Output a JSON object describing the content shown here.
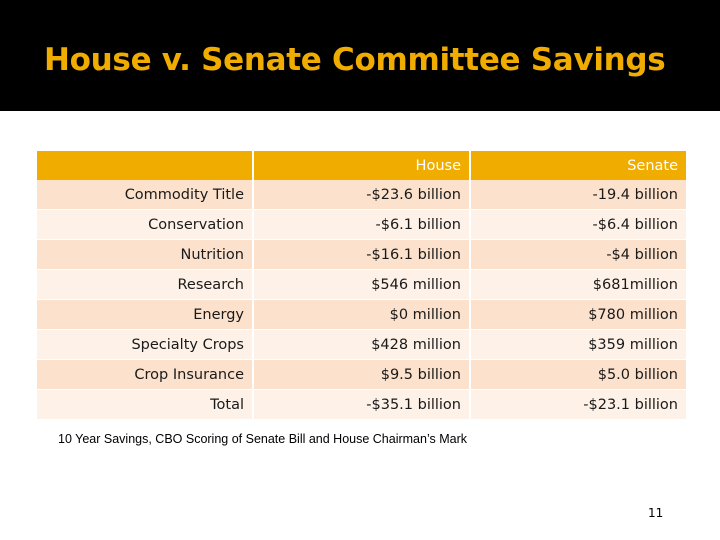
{
  "slide": {
    "title": "House v. Senate Committee Savings",
    "footnote": "10 Year Savings, CBO Scoring of Senate Bill and House Chairman’s Mark",
    "page_number": "11",
    "colors": {
      "header_bg": "#000000",
      "accent": "#f0ad00",
      "row_odd": "#fce2cd",
      "row_even": "#fef1e7"
    }
  },
  "table": {
    "headers": [
      "",
      "House",
      "Senate"
    ],
    "rows": [
      {
        "label": "Commodity Title",
        "house": "-$23.6 billion",
        "senate": "-19.4 billion"
      },
      {
        "label": "Conservation",
        "house": "-$6.1 billion",
        "senate": "-$6.4 billion"
      },
      {
        "label": "Nutrition",
        "house": "-$16.1 billion",
        "senate": "-$4 billion"
      },
      {
        "label": "Research",
        "house": "$546 million",
        "senate": "$681million"
      },
      {
        "label": "Energy",
        "house": "$0 million",
        "senate": "$780 million"
      },
      {
        "label": "Specialty Crops",
        "house": "$428 million",
        "senate": "$359 million"
      },
      {
        "label": "Crop Insurance",
        "house": "$9.5 billion",
        "senate": "$5.0 billion"
      },
      {
        "label": "Total",
        "house": "-$35.1 billion",
        "senate": "-$23.1 billion"
      }
    ]
  }
}
